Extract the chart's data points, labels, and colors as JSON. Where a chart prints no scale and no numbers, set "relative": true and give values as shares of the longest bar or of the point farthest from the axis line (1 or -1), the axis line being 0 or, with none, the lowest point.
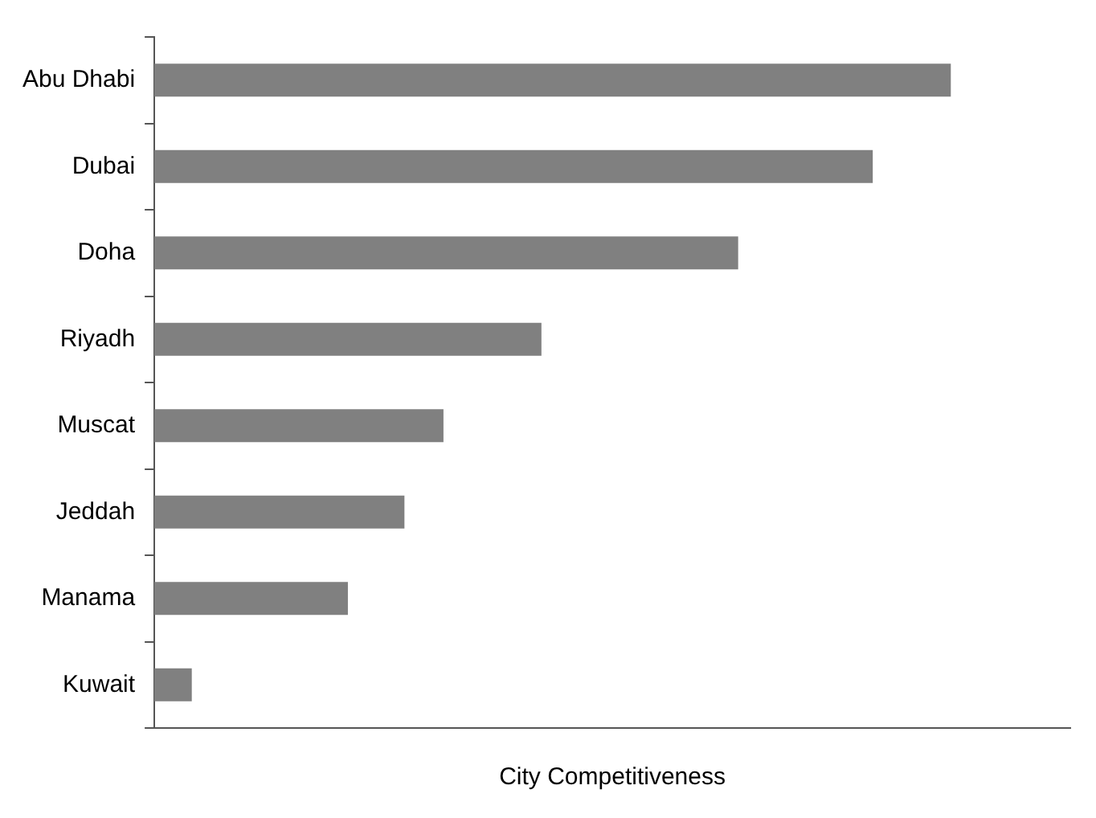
{
  "chart_data": {
    "type": "bar",
    "orientation": "horizontal",
    "relative": true,
    "xlabel": "City Competitiveness",
    "categories": [
      "Abu Dhabi",
      "Dubai",
      "Doha",
      "Riyadh",
      "Muscat",
      "Jeddah",
      "Manama",
      "Kuwait"
    ],
    "values": [
      1,
      0.902,
      0.733,
      0.486,
      0.363,
      0.314,
      0.243,
      0.047
    ],
    "color": "#808080",
    "grid": false,
    "legend": false
  }
}
